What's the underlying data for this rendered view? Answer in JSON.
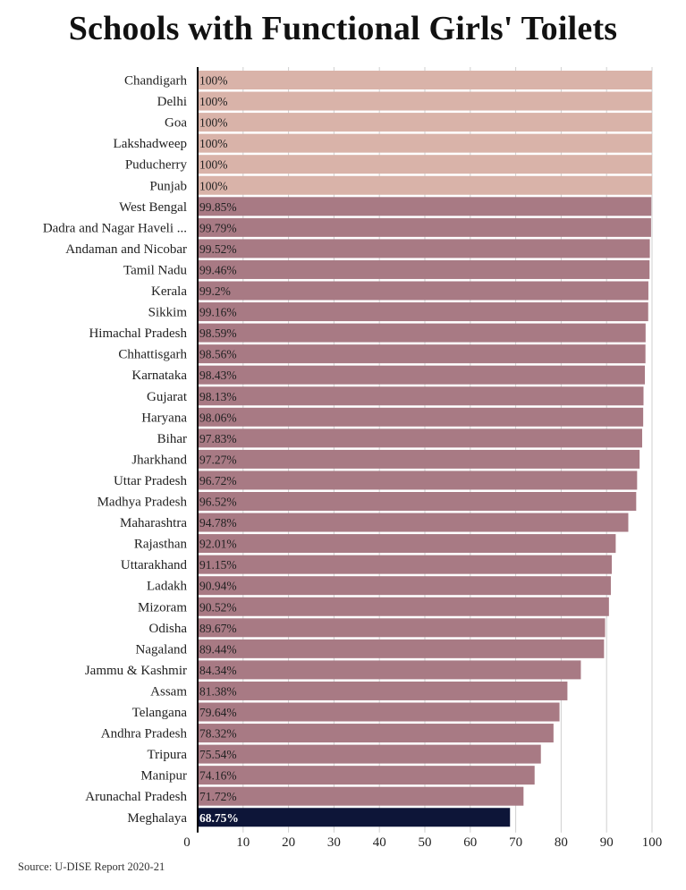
{
  "chart_data": {
    "type": "bar",
    "orientation": "horizontal",
    "title": "Schools with Functional Girls' Toilets",
    "source": "Source: U-DISE Report 2020-21",
    "xlabel": "",
    "ylabel": "",
    "xlim": [
      0,
      100
    ],
    "xticks": [
      0,
      10,
      20,
      30,
      40,
      50,
      60,
      70,
      80,
      90,
      100
    ],
    "grid": true,
    "categories": [
      "Chandigarh",
      "Delhi",
      "Goa",
      "Lakshadweep",
      "Puducherry",
      "Punjab",
      "West Bengal",
      "Dadra and Nagar Haveli ...",
      "Andaman and Nicobar",
      "Tamil Nadu",
      "Kerala",
      "Sikkim",
      "Himachal Pradesh",
      "Chhattisgarh",
      "Karnataka",
      "Gujarat",
      "Haryana",
      "Bihar",
      "Jharkhand",
      "Uttar Pradesh",
      "Madhya Pradesh",
      "Maharashtra",
      "Rajasthan",
      "Uttarakhand",
      "Ladakh",
      "Mizoram",
      "Odisha",
      "Nagaland",
      "Jammu & Kashmir",
      "Assam",
      "Telangana",
      "Andhra Pradesh",
      "Tripura",
      "Manipur",
      "Arunachal Pradesh",
      "Meghalaya"
    ],
    "values": [
      100,
      100,
      100,
      100,
      100,
      100,
      99.85,
      99.79,
      99.52,
      99.46,
      99.2,
      99.16,
      98.59,
      98.56,
      98.43,
      98.13,
      98.06,
      97.83,
      97.27,
      96.72,
      96.52,
      94.78,
      92.01,
      91.15,
      90.94,
      90.52,
      89.67,
      89.44,
      84.34,
      81.38,
      79.64,
      78.32,
      75.54,
      74.16,
      71.72,
      68.75
    ],
    "value_labels": [
      "100%",
      "100%",
      "100%",
      "100%",
      "100%",
      "100%",
      "99.85%",
      "99.79%",
      "99.52%",
      "99.46%",
      "99.2%",
      "99.16%",
      "98.59%",
      "98.56%",
      "98.43%",
      "98.13%",
      "98.06%",
      "97.83%",
      "97.27%",
      "96.72%",
      "96.52%",
      "94.78%",
      "92.01%",
      "91.15%",
      "90.94%",
      "90.52%",
      "89.67%",
      "89.44%",
      "84.34%",
      "81.38%",
      "79.64%",
      "78.32%",
      "75.54%",
      "74.16%",
      "71.72%",
      "68.75%"
    ],
    "colors": {
      "full": "#d9b3a9",
      "default": "#a87a84",
      "highlight": "#0d1538",
      "axis": "#000000",
      "grid": "#cfcfcf"
    }
  }
}
